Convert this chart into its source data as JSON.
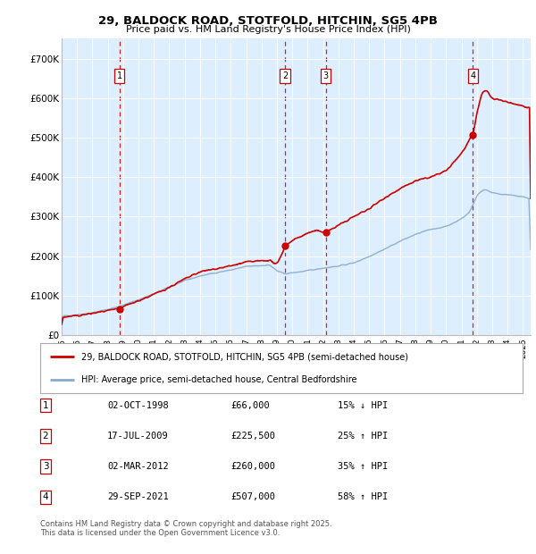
{
  "title_line1": "29, BALDOCK ROAD, STOTFOLD, HITCHIN, SG5 4PB",
  "title_line2": "Price paid vs. HM Land Registry's House Price Index (HPI)",
  "background_color": "#ddeeff",
  "ylabel": "",
  "xlabel": "",
  "ylim": [
    0,
    750000
  ],
  "yticks": [
    0,
    100000,
    200000,
    300000,
    400000,
    500000,
    600000,
    700000
  ],
  "ytick_labels": [
    "£0",
    "£100K",
    "£200K",
    "£300K",
    "£400K",
    "£500K",
    "£600K",
    "£700K"
  ],
  "sale_dates": [
    1998.75,
    2009.54,
    2012.17,
    2021.75
  ],
  "sale_prices": [
    66000,
    225500,
    260000,
    507000
  ],
  "sale_labels": [
    "1",
    "2",
    "3",
    "4"
  ],
  "dashed_line_color": "#cc0000",
  "sale_dot_color": "#cc0000",
  "hpi_line_color": "#88aacc",
  "price_line_color": "#cc0000",
  "legend_label_price": "29, BALDOCK ROAD, STOTFOLD, HITCHIN, SG5 4PB (semi-detached house)",
  "legend_label_hpi": "HPI: Average price, semi-detached house, Central Bedfordshire",
  "table_entries": [
    {
      "label": "1",
      "date": "02-OCT-1998",
      "price": "£66,000",
      "change": "15% ↓ HPI"
    },
    {
      "label": "2",
      "date": "17-JUL-2009",
      "price": "£225,500",
      "change": "25% ↑ HPI"
    },
    {
      "label": "3",
      "date": "02-MAR-2012",
      "price": "£260,000",
      "change": "35% ↑ HPI"
    },
    {
      "label": "4",
      "date": "29-SEP-2021",
      "price": "£507,000",
      "change": "58% ↑ HPI"
    }
  ],
  "footnote": "Contains HM Land Registry data © Crown copyright and database right 2025.\nThis data is licensed under the Open Government Licence v3.0.",
  "xmin": 1995.0,
  "xmax": 2025.5
}
